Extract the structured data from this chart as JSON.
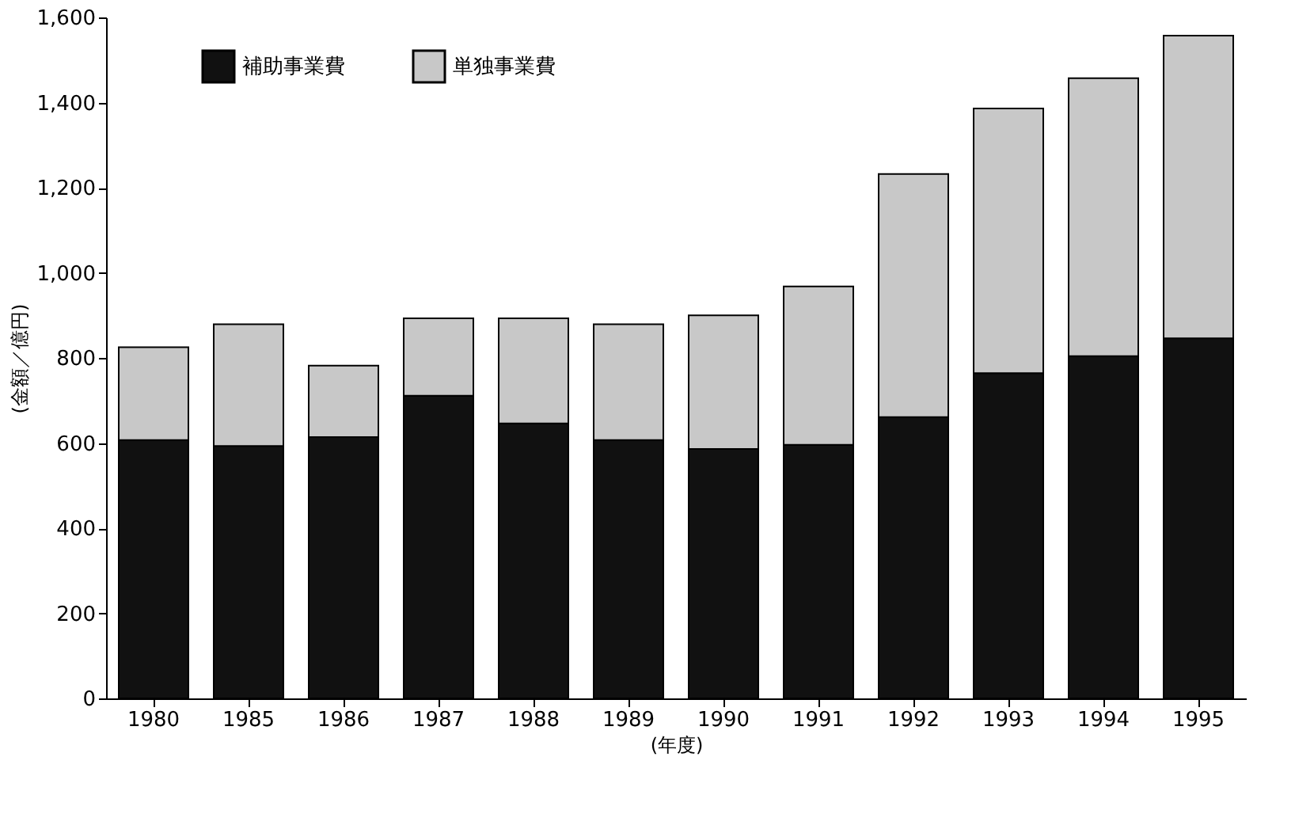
{
  "chart_data": {
    "type": "bar",
    "stacked": true,
    "xlabel": "(年度)",
    "ylabel": "(金額／億円)",
    "categories": [
      "1980",
      "1985",
      "1986",
      "1987",
      "1988",
      "1989",
      "1990",
      "1991",
      "1992",
      "1993",
      "1994",
      "1995"
    ],
    "series": [
      {
        "name": "補助事業費",
        "color": "#111111",
        "values": [
          607,
          593,
          614,
          711,
          646,
          607,
          586,
          596,
          661,
          764,
          804,
          846
        ]
      },
      {
        "name": "単独事業費",
        "color": "#c8c8c8",
        "values": [
          218,
          286,
          168,
          182,
          247,
          272,
          314,
          372,
          571,
          622,
          653,
          711
        ]
      }
    ],
    "ylim": [
      0,
      1600
    ],
    "yticks": [
      0,
      200,
      400,
      600,
      800,
      {
        "value": 1000,
        "label": "1,000"
      },
      {
        "value": 1200,
        "label": "1,200"
      },
      {
        "value": 1400,
        "label": "1,400"
      },
      {
        "value": 1600,
        "label": "1,600"
      }
    ],
    "grid": false,
    "legend": "top left"
  }
}
